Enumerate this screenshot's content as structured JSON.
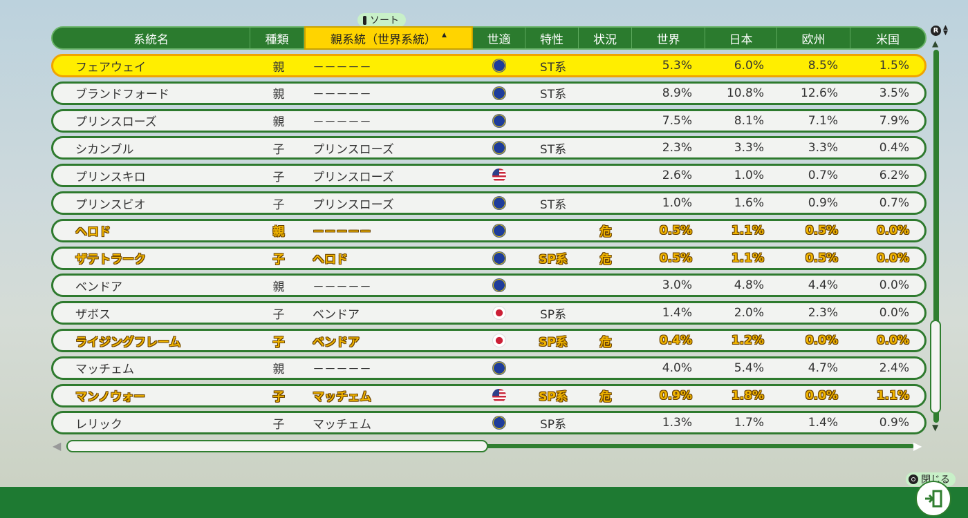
{
  "sort_hint": "ソート",
  "close_hint": "閉じる",
  "scroll_button": "R",
  "headers": [
    "系統名",
    "種類",
    "親系統（世界系統）",
    "世適",
    "特性",
    "状況",
    "世界",
    "日本",
    "欧州",
    "米国"
  ],
  "sorted_column": 2,
  "colors": {
    "header": "#2b7b2e",
    "row_border": "#2e7a2e",
    "selected": "#ffee00",
    "warning": "#f0b400"
  },
  "rows": [
    {
      "name": "フェアウェイ",
      "type": "親",
      "parent": "－－－－－",
      "flag": "eu-flag-icon",
      "trait": "ST系",
      "status": "",
      "world": "5.3%",
      "japan": "6.0%",
      "europe": "8.5%",
      "usa": "1.5%",
      "selected": true,
      "warn": false
    },
    {
      "name": "ブランドフォード",
      "type": "親",
      "parent": "－－－－－",
      "flag": "eu-flag-icon",
      "trait": "ST系",
      "status": "",
      "world": "8.9%",
      "japan": "10.8%",
      "europe": "12.6%",
      "usa": "3.5%",
      "selected": false,
      "warn": false
    },
    {
      "name": "プリンスローズ",
      "type": "親",
      "parent": "－－－－－",
      "flag": "eu-flag-icon",
      "trait": "",
      "status": "",
      "world": "7.5%",
      "japan": "8.1%",
      "europe": "7.1%",
      "usa": "7.9%",
      "selected": false,
      "warn": false
    },
    {
      "name": "シカンブル",
      "type": "子",
      "parent": "プリンスローズ",
      "flag": "eu-flag-icon",
      "trait": "ST系",
      "status": "",
      "world": "2.3%",
      "japan": "3.3%",
      "europe": "3.3%",
      "usa": "0.4%",
      "selected": false,
      "warn": false
    },
    {
      "name": "プリンスキロ",
      "type": "子",
      "parent": "プリンスローズ",
      "flag": "us-flag-icon",
      "trait": "",
      "status": "",
      "world": "2.6%",
      "japan": "1.0%",
      "europe": "0.7%",
      "usa": "6.2%",
      "selected": false,
      "warn": false
    },
    {
      "name": "プリンスビオ",
      "type": "子",
      "parent": "プリンスローズ",
      "flag": "eu-flag-icon",
      "trait": "ST系",
      "status": "",
      "world": "1.0%",
      "japan": "1.6%",
      "europe": "0.9%",
      "usa": "0.7%",
      "selected": false,
      "warn": false
    },
    {
      "name": "ヘロド",
      "type": "親",
      "parent": "－－－－－",
      "flag": "eu-flag-icon",
      "trait": "",
      "status": "危",
      "world": "0.5%",
      "japan": "1.1%",
      "europe": "0.5%",
      "usa": "0.0%",
      "selected": false,
      "warn": true
    },
    {
      "name": "ザテトラーク",
      "type": "子",
      "parent": "ヘロド",
      "flag": "eu-flag-icon",
      "trait": "SP系",
      "status": "危",
      "world": "0.5%",
      "japan": "1.1%",
      "europe": "0.5%",
      "usa": "0.0%",
      "selected": false,
      "warn": true
    },
    {
      "name": "ベンドア",
      "type": "親",
      "parent": "－－－－－",
      "flag": "eu-flag-icon",
      "trait": "",
      "status": "",
      "world": "3.0%",
      "japan": "4.8%",
      "europe": "4.4%",
      "usa": "0.0%",
      "selected": false,
      "warn": false
    },
    {
      "name": "ザボス",
      "type": "子",
      "parent": "ベンドア",
      "flag": "jp-flag-icon",
      "trait": "SP系",
      "status": "",
      "world": "1.4%",
      "japan": "2.0%",
      "europe": "2.3%",
      "usa": "0.0%",
      "selected": false,
      "warn": false
    },
    {
      "name": "ライジングフレーム",
      "type": "子",
      "parent": "ベンドア",
      "flag": "jp-flag-icon",
      "trait": "SP系",
      "status": "危",
      "world": "0.4%",
      "japan": "1.2%",
      "europe": "0.0%",
      "usa": "0.0%",
      "selected": false,
      "warn": true
    },
    {
      "name": "マッチェム",
      "type": "親",
      "parent": "－－－－－",
      "flag": "eu-flag-icon",
      "trait": "",
      "status": "",
      "world": "4.0%",
      "japan": "5.4%",
      "europe": "4.7%",
      "usa": "2.4%",
      "selected": false,
      "warn": false
    },
    {
      "name": "マンノウォー",
      "type": "子",
      "parent": "マッチェム",
      "flag": "us-flag-icon",
      "trait": "SP系",
      "status": "危",
      "world": "0.9%",
      "japan": "1.8%",
      "europe": "0.0%",
      "usa": "1.1%",
      "selected": false,
      "warn": true
    },
    {
      "name": "レリック",
      "type": "子",
      "parent": "マッチェム",
      "flag": "eu-flag-icon",
      "trait": "SP系",
      "status": "",
      "world": "1.3%",
      "japan": "1.7%",
      "europe": "1.4%",
      "usa": "0.9%",
      "selected": false,
      "warn": false
    }
  ]
}
